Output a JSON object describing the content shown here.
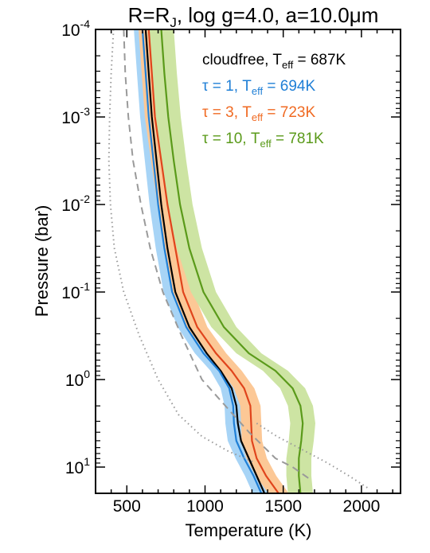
{
  "chart_data": {
    "type": "line",
    "title": {
      "main": "R=R",
      "sub": "J",
      "rest": ", log g=4.0, a=10.0",
      "mu": "μ",
      "unit": "m"
    },
    "xlabel": "Temperature (K)",
    "ylabel": "Pressure (bar)",
    "xlim": [
      300,
      2250
    ],
    "ylim_log10": [
      -4,
      1.3
    ],
    "yscale": "log",
    "yaxis_inverted": true,
    "x_ticks": [
      500,
      1000,
      1500,
      2000
    ],
    "y_ticks": [
      {
        "base": "10",
        "exp": "-4",
        "log10": -4
      },
      {
        "base": "10",
        "exp": "-3",
        "log10": -3
      },
      {
        "base": "10",
        "exp": "-2",
        "log10": -2
      },
      {
        "base": "10",
        "exp": "-1",
        "log10": -1
      },
      {
        "base": "10",
        "exp": "0",
        "log10": 0
      },
      {
        "base": "10",
        "exp": "1",
        "log10": 1
      }
    ],
    "legend": [
      {
        "pre": "cloudfree, T",
        "sub": "eff",
        "post": " = 687K",
        "color": "#000000"
      },
      {
        "pre": "τ = 1, T",
        "sub": "eff",
        "post": " = 694K",
        "color": "#1f7fd6"
      },
      {
        "pre": "τ = 3, T",
        "sub": "eff",
        "post": " = 723K",
        "color": "#f06a22"
      },
      {
        "pre": "τ = 10, T",
        "sub": "eff",
        "post": " = 781K",
        "color": "#5a9a1a"
      }
    ],
    "series": [
      {
        "name": "cloudfree",
        "color": "#000000",
        "band_color": "#cccccc",
        "band_width_K": 30,
        "points": [
          [
            620,
            -4
          ],
          [
            640,
            -3.5
          ],
          [
            660,
            -3
          ],
          [
            690,
            -2.5
          ],
          [
            720,
            -2
          ],
          [
            760,
            -1.5
          ],
          [
            810,
            -1
          ],
          [
            900,
            -0.6
          ],
          [
            1010,
            -0.3
          ],
          [
            1100,
            -0.1
          ],
          [
            1170,
            0.1
          ],
          [
            1200,
            0.3
          ],
          [
            1210,
            0.5
          ],
          [
            1230,
            0.7
          ],
          [
            1280,
            0.9
          ],
          [
            1330,
            1.1
          ],
          [
            1380,
            1.3
          ]
        ]
      },
      {
        "name": "τ = 1",
        "color": "#1f7fd6",
        "band_color": "#a7d4f6",
        "band_width_K": 55,
        "points": [
          [
            600,
            -4
          ],
          [
            620,
            -3.5
          ],
          [
            640,
            -3
          ],
          [
            670,
            -2.5
          ],
          [
            700,
            -2
          ],
          [
            740,
            -1.5
          ],
          [
            790,
            -1
          ],
          [
            880,
            -0.6
          ],
          [
            990,
            -0.3
          ],
          [
            1090,
            -0.1
          ],
          [
            1155,
            0.1
          ],
          [
            1180,
            0.3
          ],
          [
            1185,
            0.5
          ],
          [
            1200,
            0.7
          ],
          [
            1250,
            0.9
          ],
          [
            1310,
            1.1
          ],
          [
            1360,
            1.3
          ]
        ]
      },
      {
        "name": "τ = 3",
        "color": "#e0441c",
        "band_color": "#fcc896",
        "band_width_K": 65,
        "points": [
          [
            640,
            -4
          ],
          [
            660,
            -3.5
          ],
          [
            680,
            -3
          ],
          [
            720,
            -2.5
          ],
          [
            760,
            -2
          ],
          [
            810,
            -1.5
          ],
          [
            860,
            -1
          ],
          [
            950,
            -0.6
          ],
          [
            1070,
            -0.3
          ],
          [
            1170,
            -0.1
          ],
          [
            1250,
            0.1
          ],
          [
            1290,
            0.3
          ],
          [
            1295,
            0.5
          ],
          [
            1300,
            0.7
          ],
          [
            1330,
            0.9
          ],
          [
            1390,
            1.1
          ],
          [
            1470,
            1.3
          ]
        ]
      },
      {
        "name": "τ = 10",
        "color": "#5a9a1a",
        "band_color": "#cde4a3",
        "band_width_K": 80,
        "points": [
          [
            720,
            -4
          ],
          [
            740,
            -3.5
          ],
          [
            765,
            -3
          ],
          [
            800,
            -2.5
          ],
          [
            840,
            -2
          ],
          [
            900,
            -1.5
          ],
          [
            990,
            -1
          ],
          [
            1120,
            -0.6
          ],
          [
            1280,
            -0.3
          ],
          [
            1450,
            -0.1
          ],
          [
            1560,
            0.1
          ],
          [
            1610,
            0.3
          ],
          [
            1625,
            0.5
          ],
          [
            1615,
            0.7
          ],
          [
            1600,
            0.9
          ],
          [
            1600,
            1.1
          ],
          [
            1610,
            1.3
          ]
        ]
      },
      {
        "name": "",
        "color": "#9a9a9a",
        "style": "dashed",
        "points": [
          [
            480,
            -4
          ],
          [
            490,
            -3.5
          ],
          [
            510,
            -3
          ],
          [
            540,
            -2.5
          ],
          [
            590,
            -2
          ],
          [
            650,
            -1.5
          ],
          [
            730,
            -1
          ],
          [
            850,
            -0.5
          ],
          [
            980,
            0
          ],
          [
            1130,
            0.3
          ],
          [
            1280,
            0.6
          ],
          [
            1450,
            0.9
          ],
          [
            1560,
            1
          ],
          [
            1680,
            1.15
          ]
        ]
      },
      {
        "name": "",
        "color": "#9a9a9a",
        "style": "dotted",
        "points": [
          [
            415,
            -4
          ],
          [
            400,
            -3.5
          ],
          [
            390,
            -3
          ],
          [
            385,
            -2.5
          ],
          [
            395,
            -2
          ],
          [
            420,
            -1.5
          ],
          [
            480,
            -1
          ],
          [
            580,
            -0.5
          ],
          [
            700,
            0
          ],
          [
            830,
            0.4
          ],
          [
            980,
            0.65
          ],
          [
            1150,
            0.82
          ],
          [
            1320,
            0.95
          ]
        ]
      },
      {
        "name": "",
        "color": "#9a9a9a",
        "style": "dotted",
        "points": [
          [
            1330,
            0.5
          ],
          [
            1460,
            0.65
          ],
          [
            1620,
            0.8
          ],
          [
            1780,
            0.95
          ],
          [
            1920,
            1.1
          ],
          [
            2050,
            1.25
          ]
        ]
      }
    ],
    "grid": false,
    "legend_placement": "top-right"
  }
}
